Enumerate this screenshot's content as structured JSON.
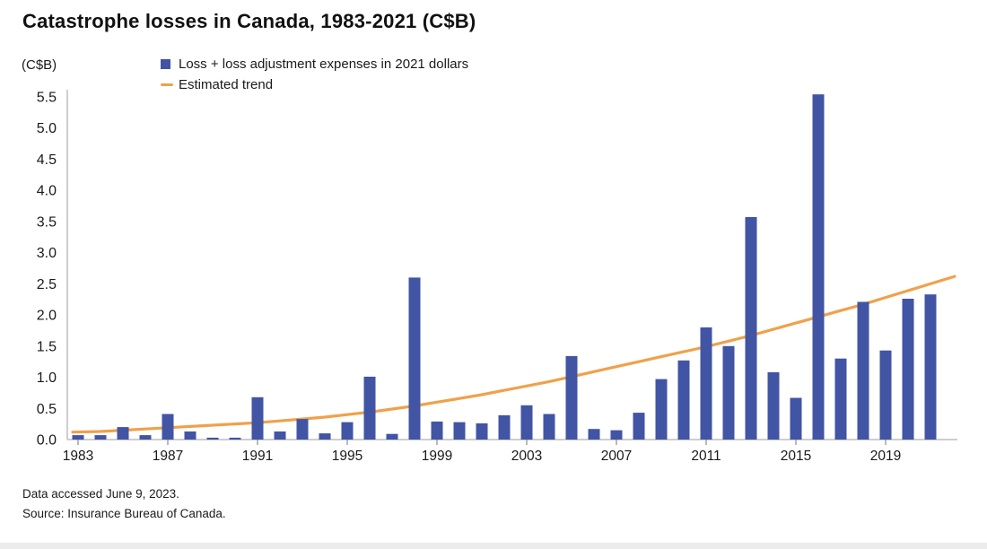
{
  "title": "Catastrophe losses in Canada, 1983-2021 (C$B)",
  "y_axis_unit_label": "(C$B)",
  "legend": {
    "bar_label": "Loss + loss adjustment expenses in 2021 dollars",
    "line_label": "Estimated trend"
  },
  "footer": {
    "line1": "Data accessed June 9, 2023.",
    "line2": "Source: Insurance Bureau of Canada."
  },
  "colors": {
    "bar": "#4254a4",
    "trend": "#efa14b",
    "axis": "#bdbdbd",
    "text": "#1a1a1a"
  },
  "chart_data": {
    "type": "bar",
    "title": "Catastrophe losses in Canada, 1983-2021 (C$B)",
    "xlabel": "",
    "ylabel": "(C$B)",
    "ylim": [
      0,
      5.5
    ],
    "y_ticks": [
      "0.0",
      "0.5",
      "1.0",
      "1.5",
      "2.0",
      "2.5",
      "3.0",
      "3.5",
      "4.0",
      "4.5",
      "5.0",
      "5.5"
    ],
    "x_tick_labels": [
      "1983",
      "1987",
      "1991",
      "1995",
      "1999",
      "2003",
      "2007",
      "2011",
      "2015",
      "2019"
    ],
    "grid": false,
    "legend_position": "top-left",
    "years": [
      1983,
      1984,
      1985,
      1986,
      1987,
      1988,
      1989,
      1990,
      1991,
      1992,
      1993,
      1994,
      1995,
      1996,
      1997,
      1998,
      1999,
      2000,
      2001,
      2002,
      2003,
      2004,
      2005,
      2006,
      2007,
      2008,
      2009,
      2010,
      2011,
      2012,
      2013,
      2014,
      2015,
      2016,
      2017,
      2018,
      2019,
      2020,
      2021
    ],
    "series": [
      {
        "name": "Loss + loss adjustment expenses in 2021 dollars",
        "type": "bar",
        "values": [
          0.07,
          0.07,
          0.2,
          0.07,
          0.41,
          0.13,
          0.03,
          0.03,
          0.68,
          0.13,
          0.33,
          0.1,
          0.28,
          1.01,
          0.09,
          2.6,
          0.29,
          0.28,
          0.26,
          0.39,
          0.55,
          0.41,
          1.34,
          0.17,
          0.15,
          0.43,
          0.97,
          1.27,
          1.8,
          1.5,
          3.57,
          1.08,
          0.67,
          5.54,
          1.3,
          2.21,
          1.43,
          2.26,
          2.33
        ]
      },
      {
        "name": "Estimated trend",
        "type": "line",
        "values": [
          0.12,
          0.13,
          0.15,
          0.17,
          0.19,
          0.21,
          0.23,
          0.25,
          0.27,
          0.3,
          0.33,
          0.36,
          0.4,
          0.44,
          0.49,
          0.54,
          0.6,
          0.66,
          0.72,
          0.79,
          0.86,
          0.93,
          1.01,
          1.09,
          1.17,
          1.25,
          1.33,
          1.41,
          1.49,
          1.58,
          1.67,
          1.77,
          1.87,
          1.97,
          2.07,
          2.17,
          2.28,
          2.39,
          2.5
        ]
      }
    ]
  }
}
